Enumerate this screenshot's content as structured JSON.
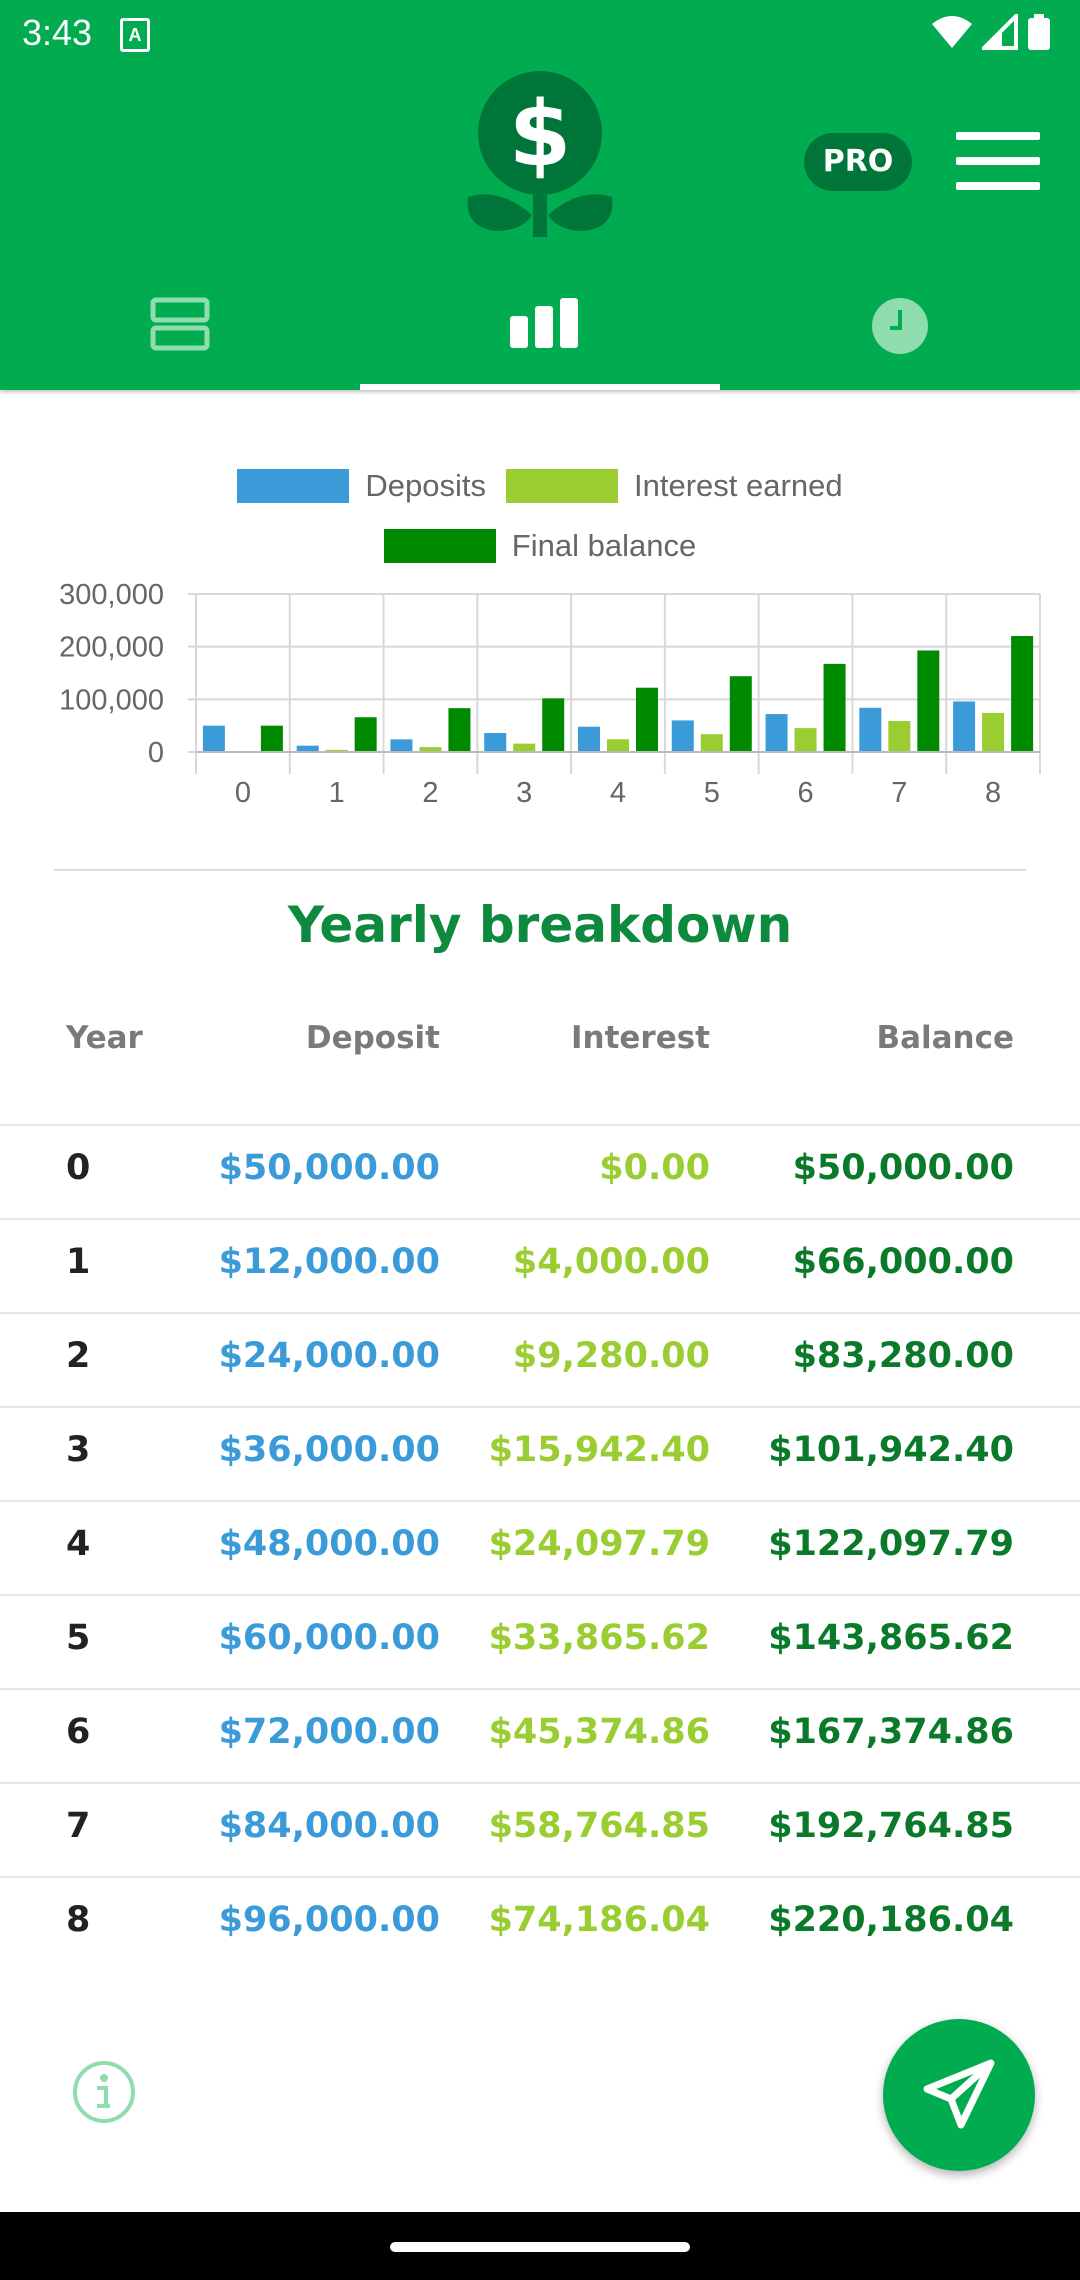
{
  "status": {
    "time": "3:43",
    "notif_letter": "A"
  },
  "header": {
    "pro_label": "PRO"
  },
  "tabs": [
    {
      "icon": "list-icon",
      "active": false
    },
    {
      "icon": "bar-chart-icon",
      "active": true
    },
    {
      "icon": "clock-icon",
      "active": false
    }
  ],
  "chart_data": {
    "type": "bar",
    "categories": [
      "0",
      "1",
      "2",
      "3",
      "4",
      "5",
      "6",
      "7",
      "8"
    ],
    "series": [
      {
        "name": "Deposits",
        "color": "#3B9BD8",
        "values": [
          50000,
          12000,
          24000,
          36000,
          48000,
          60000,
          72000,
          84000,
          96000
        ]
      },
      {
        "name": "Interest earned",
        "color": "#9ACD32",
        "values": [
          0,
          4000,
          9280,
          15942.4,
          24097.79,
          33865.62,
          45374.86,
          58764.85,
          74186.04
        ]
      },
      {
        "name": "Final balance",
        "color": "#008A00",
        "values": [
          50000,
          66000,
          83280,
          101942.4,
          122097.79,
          143865.62,
          167374.86,
          192764.85,
          220186.04
        ]
      }
    ],
    "yticks": [
      "0",
      "100,000",
      "200,000",
      "300,000"
    ],
    "ylim": [
      0,
      300000
    ],
    "legend_position": "top"
  },
  "breakdown": {
    "title": "Yearly breakdown",
    "headers": {
      "year": "Year",
      "deposit": "Deposit",
      "interest": "Interest",
      "balance": "Balance"
    },
    "rows": [
      {
        "year": "0",
        "deposit": "$50,000.00",
        "interest": "$0.00",
        "balance": "$50,000.00"
      },
      {
        "year": "1",
        "deposit": "$12,000.00",
        "interest": "$4,000.00",
        "balance": "$66,000.00"
      },
      {
        "year": "2",
        "deposit": "$24,000.00",
        "interest": "$9,280.00",
        "balance": "$83,280.00"
      },
      {
        "year": "3",
        "deposit": "$36,000.00",
        "interest": "$15,942.40",
        "balance": "$101,942.40"
      },
      {
        "year": "4",
        "deposit": "$48,000.00",
        "interest": "$24,097.79",
        "balance": "$122,097.79"
      },
      {
        "year": "5",
        "deposit": "$60,000.00",
        "interest": "$33,865.62",
        "balance": "$143,865.62"
      },
      {
        "year": "6",
        "deposit": "$72,000.00",
        "interest": "$45,374.86",
        "balance": "$167,374.86"
      },
      {
        "year": "7",
        "deposit": "$84,000.00",
        "interest": "$58,764.85",
        "balance": "$192,764.85"
      },
      {
        "year": "8",
        "deposit": "$96,000.00",
        "interest": "$74,186.04",
        "balance": "$220,186.04"
      }
    ]
  },
  "colors": {
    "primary": "#00AC4F",
    "deposit": "#3B9BD8",
    "interest": "#9ACD32",
    "balance": "#0A7A2A"
  }
}
